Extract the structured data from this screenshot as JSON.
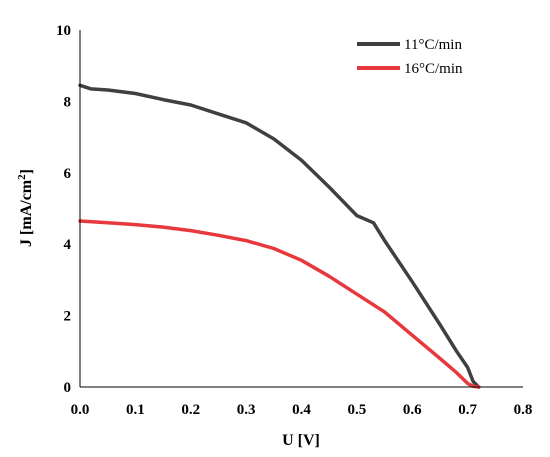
{
  "chart_data": {
    "type": "line",
    "xlabel": "U [V]",
    "ylabel": "J [mA/cm",
    "ylabel_sup": "2",
    "ylabel_end": "]",
    "xlim": [
      0,
      0.8
    ],
    "ylim": [
      0,
      10
    ],
    "x_ticks": [
      "0.0",
      "0.1",
      "0.2",
      "0.3",
      "0.4",
      "0.5",
      "0.6",
      "0.7",
      "0.8"
    ],
    "y_ticks": [
      "0",
      "2",
      "4",
      "6",
      "8",
      "10"
    ],
    "grid": false,
    "legend_position": "top-right",
    "series": [
      {
        "name": "11°C/min",
        "color": "#404040",
        "x": [
          0.0,
          0.02,
          0.05,
          0.1,
          0.15,
          0.2,
          0.25,
          0.3,
          0.35,
          0.4,
          0.45,
          0.5,
          0.53,
          0.55,
          0.6,
          0.65,
          0.68,
          0.7,
          0.71,
          0.72
        ],
        "y": [
          8.45,
          8.35,
          8.32,
          8.22,
          8.05,
          7.9,
          7.65,
          7.4,
          6.95,
          6.35,
          5.6,
          4.8,
          4.6,
          4.1,
          2.95,
          1.75,
          1.0,
          0.55,
          0.15,
          0.0
        ]
      },
      {
        "name": "16°C/min",
        "color": "#e8383d",
        "x": [
          0.0,
          0.05,
          0.1,
          0.15,
          0.2,
          0.25,
          0.3,
          0.35,
          0.4,
          0.45,
          0.5,
          0.55,
          0.6,
          0.65,
          0.68,
          0.7,
          0.71,
          0.72
        ],
        "y": [
          4.65,
          4.6,
          4.55,
          4.48,
          4.38,
          4.25,
          4.1,
          3.88,
          3.55,
          3.1,
          2.6,
          2.1,
          1.45,
          0.8,
          0.4,
          0.1,
          0.02,
          0.0
        ]
      }
    ]
  }
}
